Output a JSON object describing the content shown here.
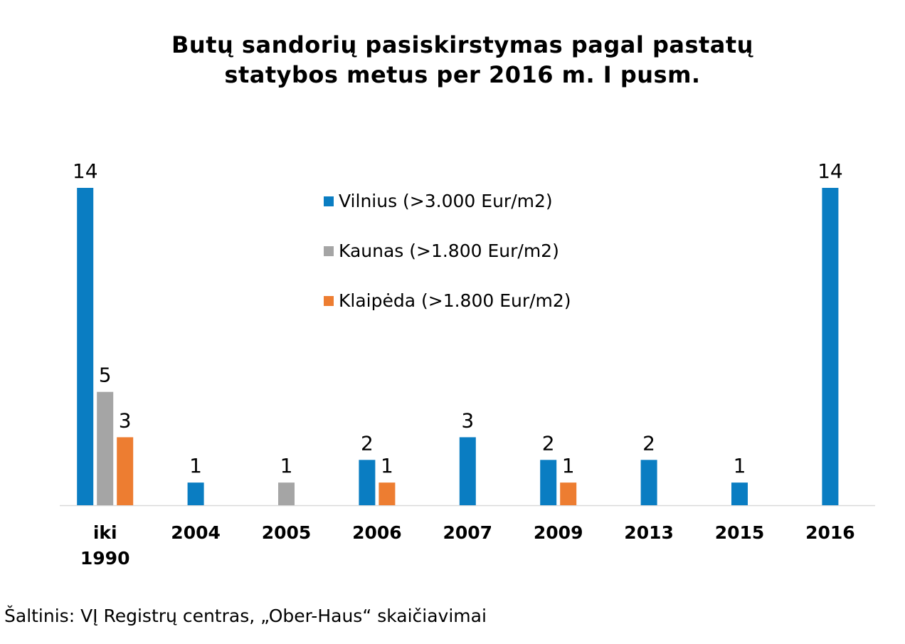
{
  "chart_data": {
    "type": "bar",
    "title": [
      "Butų sandorių pasiskirstymas pagal pastatų",
      "statybos metus per 2016 m. I pusm."
    ],
    "categories": [
      [
        "iki",
        "1990"
      ],
      [
        "2004"
      ],
      [
        "2005"
      ],
      [
        "2006"
      ],
      [
        "2007"
      ],
      [
        "2009"
      ],
      [
        "2013"
      ],
      [
        "2015"
      ],
      [
        "2016"
      ]
    ],
    "series": [
      {
        "name": "Vilnius (>3.000 Eur/m2)",
        "color": "#0a7dc2",
        "values": [
          14,
          1,
          null,
          2,
          3,
          2,
          2,
          1,
          14
        ]
      },
      {
        "name": "Kaunas (>1.800 Eur/m2)",
        "color": "#a5a5a5",
        "values": [
          5,
          null,
          1,
          null,
          null,
          null,
          null,
          null,
          null
        ]
      },
      {
        "name": "Klaipėda (>1.800 Eur/m2)",
        "color": "#ed7d31",
        "values": [
          3,
          null,
          null,
          1,
          null,
          1,
          null,
          null,
          null
        ]
      }
    ],
    "ylim": [
      0,
      14
    ],
    "grid": false,
    "legend_position": "top-center",
    "data_labels": true
  },
  "source": "Šaltinis: VĮ Registrų centras, „Ober-Haus“ skaičiavimai"
}
